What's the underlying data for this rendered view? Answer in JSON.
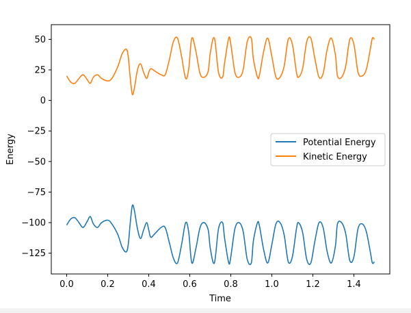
{
  "chart_data": {
    "type": "line",
    "title": "",
    "xlabel": "Time",
    "ylabel": "Energy",
    "xlim": [
      -0.075,
      1.575
    ],
    "ylim": [
      -142,
      62
    ],
    "xticks": [
      0.0,
      0.2,
      0.4,
      0.6,
      0.8,
      1.0,
      1.2,
      1.4
    ],
    "xtick_labels": [
      "0.0",
      "0.2",
      "0.4",
      "0.6",
      "0.8",
      "1.0",
      "1.2",
      "1.4"
    ],
    "yticks": [
      50,
      25,
      0,
      -25,
      -50,
      -75,
      -100,
      -125
    ],
    "ytick_labels": [
      "50",
      "25",
      "0",
      "−25",
      "−50",
      "−75",
      "−100",
      "−125"
    ],
    "grid": false,
    "legend_position": "center-right",
    "series": [
      {
        "name": "Potential Energy",
        "color": "#1f77b4",
        "x": [
          0.0,
          0.02,
          0.04,
          0.06,
          0.08,
          0.1,
          0.115,
          0.13,
          0.15,
          0.17,
          0.2,
          0.22,
          0.25,
          0.27,
          0.29,
          0.3,
          0.31,
          0.32,
          0.33,
          0.345,
          0.36,
          0.375,
          0.39,
          0.4,
          0.41,
          0.43,
          0.46,
          0.48,
          0.5,
          0.52,
          0.54,
          0.56,
          0.58,
          0.595,
          0.61,
          0.63,
          0.65,
          0.67,
          0.69,
          0.7,
          0.72,
          0.74,
          0.76,
          0.77,
          0.79,
          0.8,
          0.82,
          0.84,
          0.86,
          0.88,
          0.9,
          0.91,
          0.93,
          0.94,
          0.96,
          0.98,
          1.0,
          1.02,
          1.04,
          1.06,
          1.08,
          1.1,
          1.12,
          1.13,
          1.15,
          1.17,
          1.19,
          1.21,
          1.23,
          1.25,
          1.27,
          1.29,
          1.31,
          1.32,
          1.34,
          1.36,
          1.38,
          1.4,
          1.42,
          1.44,
          1.46,
          1.48,
          1.49,
          1.5
        ],
        "y": [
          -102,
          -97,
          -96,
          -100,
          -104,
          -99,
          -95,
          -101,
          -104,
          -100,
          -98,
          -101,
          -110,
          -120,
          -124,
          -118,
          -100,
          -86,
          -90,
          -105,
          -113,
          -106,
          -100,
          -106,
          -112,
          -109,
          -104,
          -104,
          -116,
          -129,
          -133,
          -118,
          -100,
          -108,
          -133,
          -121,
          -104,
          -100,
          -106,
          -121,
          -133,
          -105,
          -100,
          -113,
          -133,
          -128,
          -105,
          -100,
          -107,
          -130,
          -133,
          -115,
          -100,
          -103,
          -122,
          -133,
          -118,
          -101,
          -100,
          -110,
          -132,
          -128,
          -105,
          -100,
          -108,
          -130,
          -133,
          -115,
          -100,
          -104,
          -124,
          -133,
          -119,
          -101,
          -100,
          -109,
          -131,
          -128,
          -105,
          -101,
          -107,
          -124,
          -133,
          -132
        ]
      },
      {
        "name": "Kinetic Energy",
        "color": "#ff7f0e",
        "x": [
          0.0,
          0.02,
          0.04,
          0.06,
          0.08,
          0.1,
          0.115,
          0.13,
          0.15,
          0.17,
          0.2,
          0.22,
          0.25,
          0.27,
          0.29,
          0.3,
          0.31,
          0.32,
          0.33,
          0.345,
          0.36,
          0.375,
          0.39,
          0.4,
          0.41,
          0.43,
          0.46,
          0.48,
          0.5,
          0.52,
          0.54,
          0.56,
          0.58,
          0.595,
          0.61,
          0.63,
          0.65,
          0.67,
          0.69,
          0.7,
          0.72,
          0.74,
          0.76,
          0.77,
          0.79,
          0.8,
          0.82,
          0.84,
          0.86,
          0.88,
          0.9,
          0.91,
          0.93,
          0.94,
          0.96,
          0.98,
          1.0,
          1.02,
          1.04,
          1.06,
          1.08,
          1.1,
          1.12,
          1.13,
          1.15,
          1.17,
          1.19,
          1.21,
          1.23,
          1.25,
          1.27,
          1.29,
          1.31,
          1.32,
          1.34,
          1.36,
          1.38,
          1.4,
          1.42,
          1.44,
          1.46,
          1.48,
          1.49,
          1.5
        ],
        "y": [
          20,
          15,
          14,
          18,
          21,
          17,
          14,
          19,
          21,
          18,
          16,
          18,
          28,
          38,
          42,
          36,
          18,
          5,
          10,
          25,
          30,
          23,
          18,
          23,
          26,
          24,
          21,
          21,
          33,
          48,
          51,
          36,
          18,
          26,
          51,
          40,
          22,
          19,
          24,
          39,
          51,
          23,
          19,
          31,
          51,
          46,
          23,
          19,
          25,
          48,
          51,
          34,
          19,
          21,
          40,
          51,
          36,
          19,
          19,
          28,
          50,
          46,
          23,
          19,
          26,
          48,
          51,
          34,
          19,
          22,
          42,
          51,
          37,
          20,
          19,
          28,
          50,
          46,
          23,
          20,
          25,
          42,
          51,
          50
        ]
      }
    ]
  }
}
